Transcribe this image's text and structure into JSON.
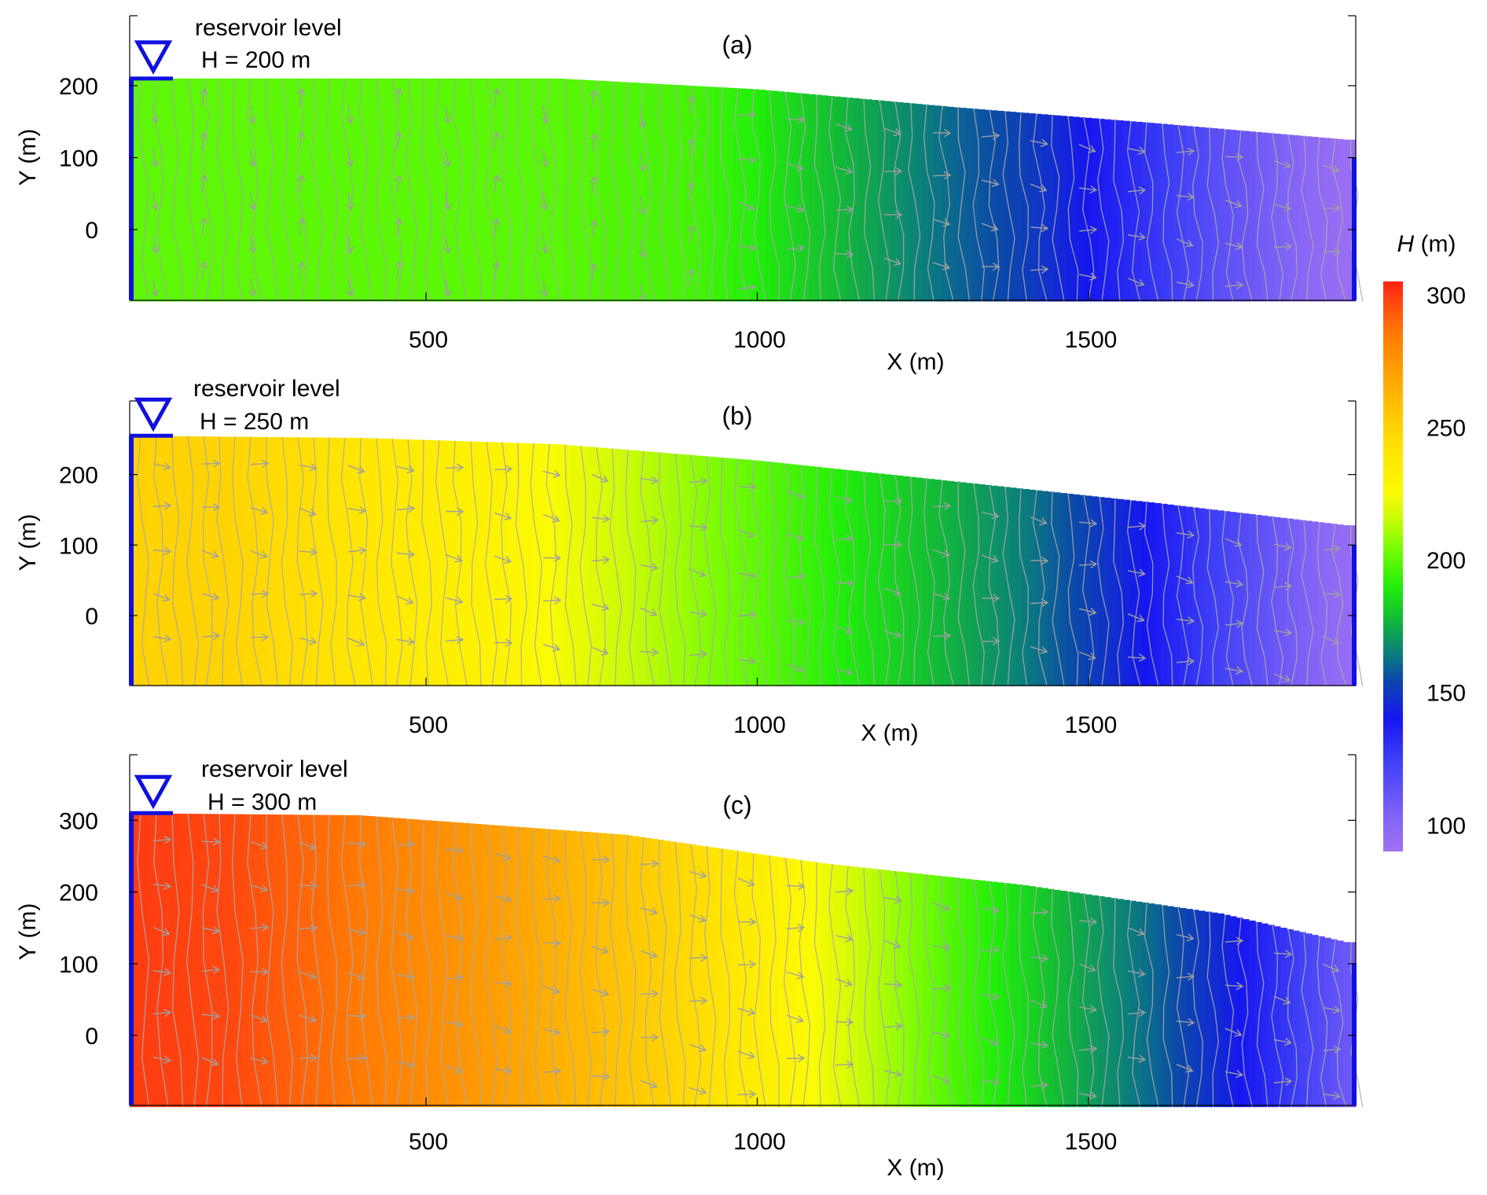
{
  "colorbar": {
    "label_italic": "H",
    "label_unit": " (m)",
    "min": 90,
    "max": 305,
    "ticks": [
      100,
      150,
      200,
      250,
      300
    ],
    "colormap": [
      {
        "value": 90,
        "color": "#9f70f2"
      },
      {
        "value": 100,
        "color": "#8a68f6"
      },
      {
        "value": 125,
        "color": "#3d3ef6"
      },
      {
        "value": 140,
        "color": "#1616f0"
      },
      {
        "value": 155,
        "color": "#0b4aa8"
      },
      {
        "value": 165,
        "color": "#0b7f7c"
      },
      {
        "value": 178,
        "color": "#13bb35"
      },
      {
        "value": 190,
        "color": "#22ee0a"
      },
      {
        "value": 205,
        "color": "#7dfc05"
      },
      {
        "value": 215,
        "color": "#c6fb07"
      },
      {
        "value": 225,
        "color": "#fbfb03"
      },
      {
        "value": 240,
        "color": "#ffe602"
      },
      {
        "value": 255,
        "color": "#ffc805"
      },
      {
        "value": 270,
        "color": "#ffa203"
      },
      {
        "value": 285,
        "color": "#ff7b05"
      },
      {
        "value": 300,
        "color": "#ff3a12"
      },
      {
        "value": 305,
        "color": "#ff2010"
      }
    ]
  },
  "chart_data": [
    {
      "type": "heatmap",
      "panel_label": "(a)",
      "xlabel": "X (m)",
      "ylabel": "Y  (m)",
      "x_ticks": [
        500,
        1000,
        1500
      ],
      "y_ticks": [
        0,
        100,
        200
      ],
      "xlim": [
        40,
        1890
      ],
      "ylim": [
        -100,
        300
      ],
      "reservoir_label": "reservoir level",
      "reservoir_value": "H = 200 m",
      "head_profile_x": [
        40,
        700,
        900,
        1000,
        1100,
        1200,
        1300,
        1400,
        1500,
        1600,
        1700,
        1800,
        1890
      ],
      "head_profile_H": [
        200,
        199,
        196,
        190,
        180,
        170,
        160,
        152,
        140,
        128,
        115,
        103,
        93
      ],
      "top_surface_x": [
        40,
        700,
        1000,
        1300,
        1600,
        1890
      ],
      "top_surface_y": [
        210,
        210,
        195,
        170,
        148,
        125
      ],
      "bottom_y": -100
    },
    {
      "type": "heatmap",
      "panel_label": "(b)",
      "xlabel": "X (m)",
      "ylabel": "Y  (m)",
      "x_ticks": [
        500,
        1000,
        1500
      ],
      "y_ticks": [
        0,
        100,
        200
      ],
      "xlim": [
        40,
        1890
      ],
      "ylim": [
        -100,
        300
      ],
      "reservoir_label": "reservoir level",
      "reservoir_value": "H = 250 m",
      "head_profile_x": [
        40,
        200,
        400,
        600,
        700,
        800,
        900,
        1000,
        1100,
        1200,
        1300,
        1400,
        1500,
        1600,
        1700,
        1800,
        1890
      ],
      "head_profile_H": [
        250,
        249,
        240,
        231,
        224,
        216,
        208,
        200,
        192,
        184,
        175,
        165,
        152,
        138,
        123,
        108,
        95
      ],
      "top_surface_x": [
        40,
        400,
        700,
        1000,
        1300,
        1600,
        1890
      ],
      "top_surface_y": [
        255,
        252,
        243,
        220,
        190,
        160,
        128
      ],
      "bottom_y": -100
    },
    {
      "type": "heatmap",
      "panel_label": "(c)",
      "xlabel": "X (m)",
      "ylabel": "Y  (m)",
      "x_ticks": [
        500,
        1000,
        1500
      ],
      "y_ticks": [
        0,
        100,
        200,
        300
      ],
      "xlim": [
        40,
        1890
      ],
      "ylim": [
        -100,
        400
      ],
      "reservoir_label": "reservoir level",
      "reservoir_value": "H = 300 m",
      "head_profile_x": [
        40,
        200,
        400,
        600,
        800,
        900,
        1000,
        1100,
        1200,
        1300,
        1400,
        1500,
        1600,
        1700,
        1800,
        1890
      ],
      "head_profile_H": [
        300,
        297,
        285,
        272,
        256,
        246,
        235,
        223,
        210,
        197,
        185,
        172,
        160,
        145,
        128,
        110
      ],
      "top_surface_x": [
        40,
        400,
        800,
        1100,
        1400,
        1700,
        1890
      ],
      "top_surface_y": [
        310,
        307,
        280,
        240,
        210,
        170,
        130
      ],
      "bottom_y": -100
    }
  ]
}
